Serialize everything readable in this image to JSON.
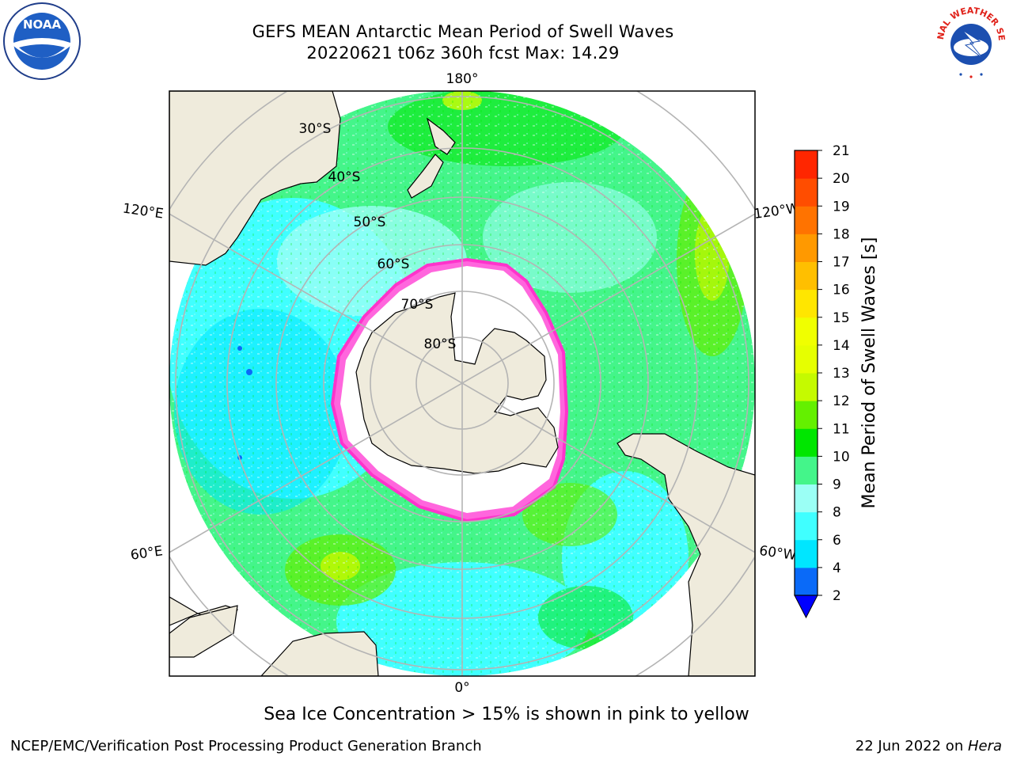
{
  "header": {
    "title_line1": "GEFS MEAN Antarctic Mean Period of Swell Waves",
    "title_line2": "20220621 t06z 360h fcst   Max: 14.29"
  },
  "map": {
    "longitude_labels": {
      "top": "180°",
      "bottom": "0°",
      "upper_left": "120°E",
      "lower_left": "60°E",
      "upper_right": "120°W",
      "lower_right": "60°W"
    },
    "latitude_labels": [
      "30°S",
      "40°S",
      "50°S",
      "60°S",
      "70°S",
      "80°S"
    ],
    "colors": {
      "land": "#efebdc",
      "ice_shelf": "#ffffff",
      "grid": "#b4b4b4",
      "ice_edge": "#ff33cc"
    }
  },
  "colorbar": {
    "label": "Mean Period of Swell Waves [s]",
    "ticks": [
      "2",
      "4",
      "6",
      "8",
      "9",
      "10",
      "11",
      "12",
      "13",
      "14",
      "15",
      "16",
      "17",
      "18",
      "19",
      "20",
      "21"
    ],
    "colors": [
      "#0a6af8",
      "#00e6ff",
      "#40ffff",
      "#9bfff5",
      "#44f58a",
      "#00e600",
      "#64f000",
      "#c5fa00",
      "#e6ff00",
      "#f0ff00",
      "#ffe600",
      "#ffbf00",
      "#ff9900",
      "#ff7300",
      "#ff4d00",
      "#ff2600",
      "#ff0000"
    ],
    "under_color": "#0000ff"
  },
  "caption": "Sea Ice Concentration > 15% is shown in pink to yellow",
  "footer": {
    "left": "NCEP/EMC/Verification Post Processing Product Generation Branch",
    "right_prefix": "22 Jun 2022 on ",
    "right_host": "Hera"
  },
  "logos": {
    "noaa_text": "NOAA",
    "nws_text": "NATIONAL WEATHER SERVICE"
  }
}
